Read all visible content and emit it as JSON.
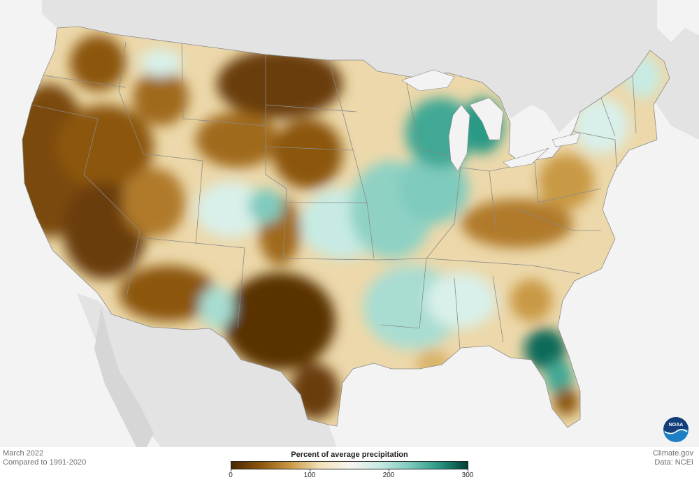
{
  "map": {
    "caption_date": "March 2022",
    "caption_baseline": "Compared to 1991-2020",
    "credit_site": "Climate.gov",
    "credit_data": "Data: NCEI",
    "logo_text": "NOAA"
  },
  "legend": {
    "title": "Percent of average precipitation",
    "ticks": [
      "0",
      "100",
      "200",
      "300"
    ],
    "tick_values": [
      0,
      100,
      200,
      300
    ],
    "range": [
      0,
      300
    ],
    "colors": [
      "#4a2800",
      "#8c5710",
      "#c99a45",
      "#f2e1b8",
      "#f7f5ee",
      "#c7ebe4",
      "#7fcbbd",
      "#2a9a86",
      "#003f35"
    ]
  },
  "colors": {
    "background": "#f3f3f3",
    "neighbor_land": "#e3e3e3",
    "water": "#f3f3f3",
    "borders": "#8a8a8a"
  }
}
